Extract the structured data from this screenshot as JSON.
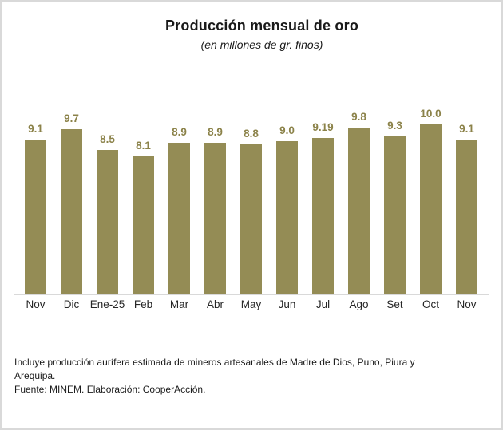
{
  "chart_data": {
    "type": "bar",
    "title": "Producción mensual de oro",
    "subtitle": "(en millones de gr. finos)",
    "categories": [
      "Nov",
      "Dic",
      "Ene-25",
      "Feb",
      "Mar",
      "Abr",
      "May",
      "Jun",
      "Jul",
      "Ago",
      "Set",
      "Oct",
      "Nov"
    ],
    "values": [
      9.1,
      9.7,
      8.5,
      8.1,
      8.9,
      8.9,
      8.8,
      9.0,
      9.19,
      9.8,
      9.3,
      10.0,
      9.1
    ],
    "value_labels": [
      "9.1",
      "9.7",
      "8.5",
      "8.1",
      "8.9",
      "8.9",
      "8.8",
      "9.0",
      "9.19",
      "9.8",
      "9.3",
      "10.0",
      "9.1"
    ],
    "xlabel": "",
    "ylabel": "",
    "ylim": [
      0,
      10.5
    ],
    "grid": false,
    "legend": "none",
    "y_axis_visible": false,
    "bar_color": "#948C55",
    "value_label_color": "#8B8249",
    "axis_line_color": "#D9D9D9"
  },
  "footnote": {
    "lines": [
      "Incluye producción aurífera estimada de mineros artesanales de Madre de Dios, Puno, Piura y",
      "Arequipa.",
      "Fuente: MINEM. Elaboración: CooperAcción."
    ]
  }
}
